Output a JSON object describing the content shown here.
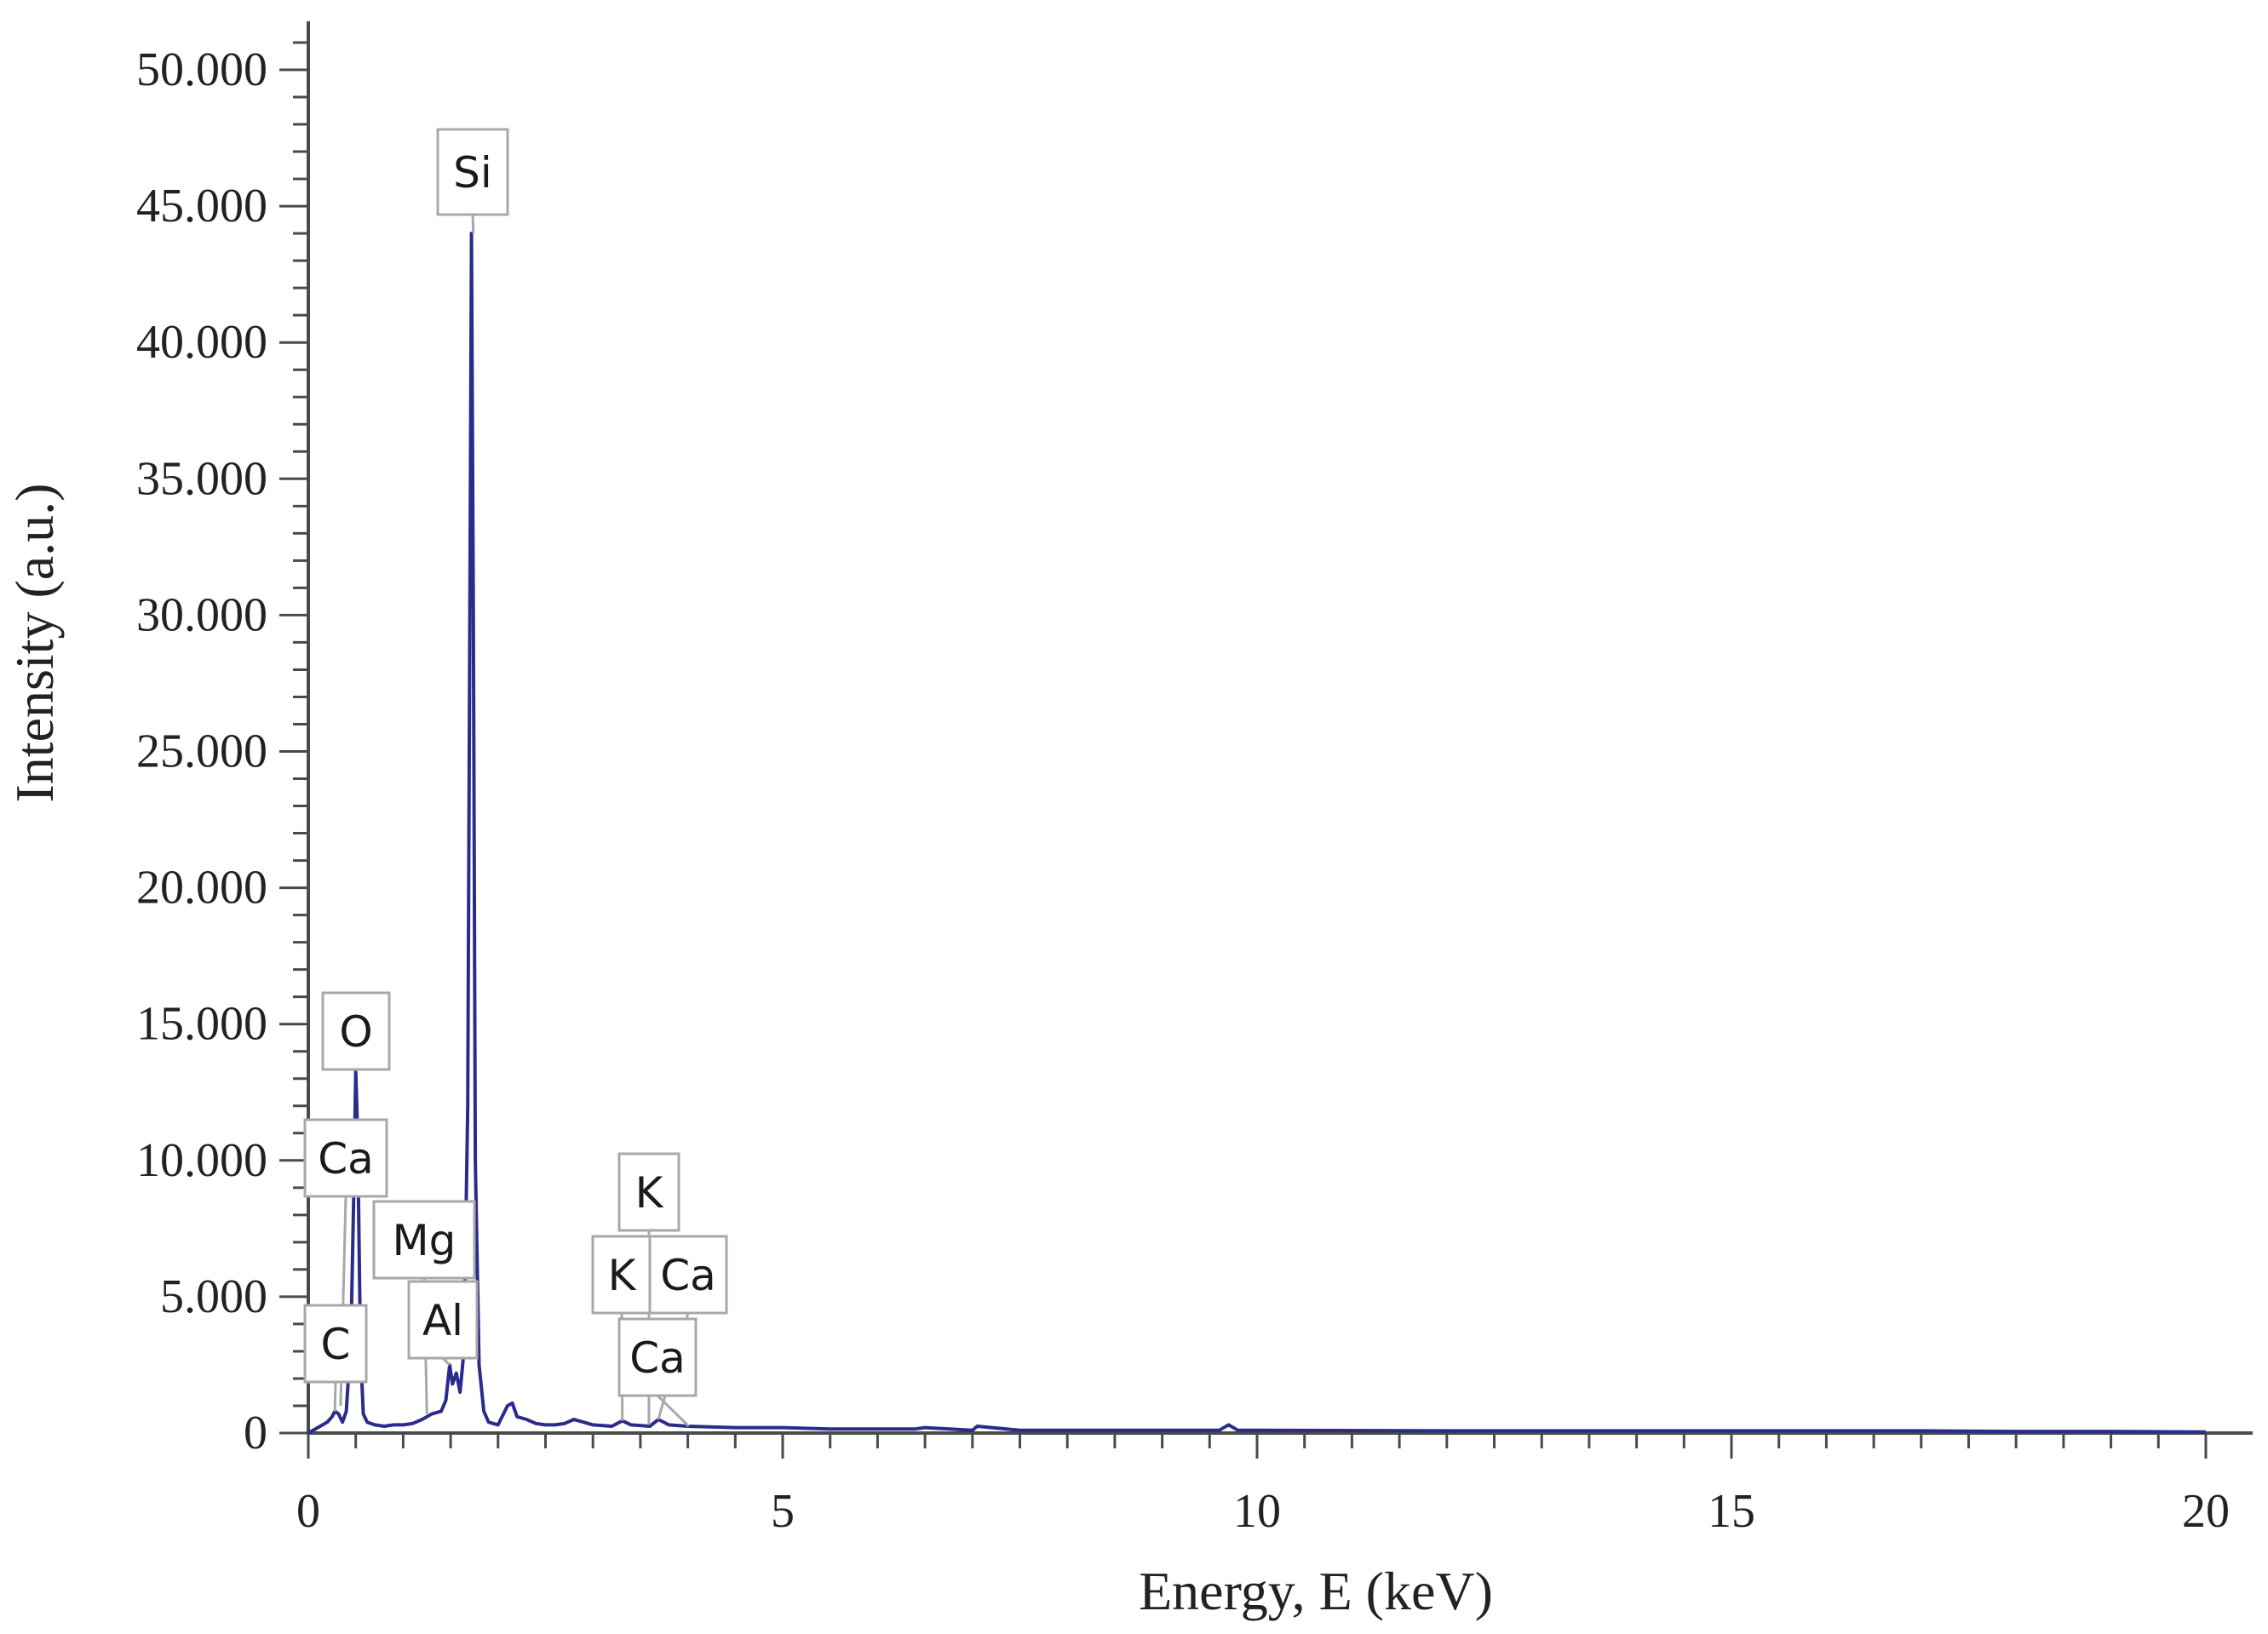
{
  "chart_data": {
    "type": "line",
    "xlabel": "Energy, E (keV)",
    "ylabel": "Intensity (a.u.)",
    "xlim": [
      0,
      20.5
    ],
    "ylim": [
      0,
      52000
    ],
    "x_ticks": [
      0,
      5,
      10,
      15,
      20
    ],
    "x_tick_labels": [
      "0",
      "5",
      "10",
      "15",
      "20"
    ],
    "y_ticks": [
      0,
      5000,
      10000,
      15000,
      20000,
      25000,
      30000,
      35000,
      40000,
      45000,
      50000
    ],
    "y_tick_labels": [
      "0",
      "5.000",
      "10.000",
      "15.000",
      "20.000",
      "25.000",
      "30.000",
      "35.000",
      "40.000",
      "45.000",
      "50.000"
    ],
    "grid": false,
    "line_color": "#2b2b8c",
    "series": [
      {
        "x": [
          0.0,
          0.1,
          0.2,
          0.25,
          0.28,
          0.32,
          0.36,
          0.4,
          0.45,
          0.48,
          0.5,
          0.52,
          0.55,
          0.58,
          0.62,
          0.7,
          0.8,
          0.9,
          1.0,
          1.1,
          1.2,
          1.25,
          1.3,
          1.4,
          1.45,
          1.49,
          1.52,
          1.56,
          1.6,
          1.64,
          1.68,
          1.7,
          1.72,
          1.74,
          1.76,
          1.8,
          1.85,
          1.9,
          2.0,
          2.1,
          2.15,
          2.2,
          2.3,
          2.4,
          2.5,
          2.6,
          2.7,
          2.8,
          2.9,
          3.0,
          3.2,
          3.31,
          3.4,
          3.6,
          3.69,
          3.8,
          4.0,
          4.5,
          5.0,
          5.5,
          6.0,
          6.4,
          6.5,
          7.0,
          7.05,
          7.5,
          8.0,
          9.0,
          9.6,
          9.7,
          9.8,
          10.0,
          12.0,
          15.0,
          17.0,
          18.0,
          19.0,
          19.4,
          20.0
        ],
        "y": [
          0,
          200,
          400,
          600,
          800,
          700,
          400,
          800,
          3500,
          9000,
          13300,
          11000,
          3000,
          700,
          400,
          300,
          250,
          300,
          300,
          350,
          500,
          600,
          700,
          800,
          1200,
          2500,
          1800,
          2200,
          1500,
          3000,
          12000,
          28000,
          44000,
          30000,
          10000,
          2500,
          800,
          400,
          300,
          1000,
          1100,
          600,
          500,
          350,
          300,
          300,
          350,
          500,
          400,
          300,
          250,
          450,
          300,
          250,
          500,
          300,
          250,
          200,
          200,
          150,
          150,
          150,
          200,
          100,
          250,
          100,
          100,
          100,
          100,
          300,
          100,
          100,
          80,
          80,
          80,
          60,
          60,
          50,
          40
        ]
      }
    ],
    "annotations": [
      {
        "text": "Si",
        "x": 1.74,
        "y": 44000
      },
      {
        "text": "O",
        "x": 0.52,
        "y": 13300
      },
      {
        "text": "Ca",
        "x": 0.34,
        "y": 1000
      },
      {
        "text": "C",
        "x": 0.28,
        "y": 800
      },
      {
        "text": "Mg",
        "x": 1.25,
        "y": 700
      },
      {
        "text": "Al",
        "x": 1.49,
        "y": 2500
      },
      {
        "text": "K",
        "x": 3.59,
        "y": 300
      },
      {
        "text": "K",
        "x": 3.31,
        "y": 450
      },
      {
        "text": "Ca",
        "x": 3.69,
        "y": 500
      },
      {
        "text": "Ca",
        "x": 4.01,
        "y": 250
      }
    ]
  }
}
